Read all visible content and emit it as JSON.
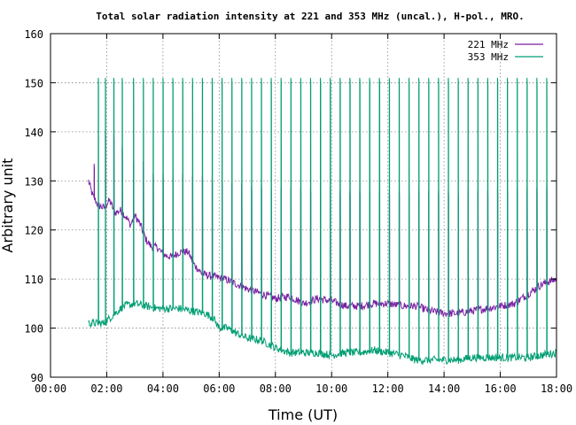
{
  "chart_data": {
    "type": "line",
    "title": "Total solar radiation intensity at 221 and 353 MHz (uncal.), H-pol., MRO.",
    "xlabel": "Time (UT)",
    "ylabel": "Arbitrary unit",
    "xlim": [
      0,
      18
    ],
    "ylim": [
      90,
      160
    ],
    "x_ticks": [
      "00:00",
      "02:00",
      "04:00",
      "06:00",
      "08:00",
      "10:00",
      "12:00",
      "14:00",
      "16:00",
      "18:00"
    ],
    "y_ticks": [
      "90",
      "100",
      "110",
      "120",
      "130",
      "140",
      "150",
      "160"
    ],
    "grid": true,
    "legend_position": "top-right",
    "series": [
      {
        "name": "221 MHz",
        "color": "#7b1fa2",
        "baseline": [
          [
            1.35,
            130
          ],
          [
            1.5,
            127
          ],
          [
            1.7,
            125
          ],
          [
            1.9,
            124.5
          ],
          [
            2.1,
            126
          ],
          [
            2.3,
            123.5
          ],
          [
            2.5,
            124
          ],
          [
            2.7,
            122.5
          ],
          [
            2.85,
            121
          ],
          [
            3.0,
            123
          ],
          [
            3.2,
            121
          ],
          [
            3.4,
            118
          ],
          [
            3.6,
            116.5
          ],
          [
            3.8,
            116.5
          ],
          [
            4.0,
            115
          ],
          [
            4.3,
            114.5
          ],
          [
            4.6,
            115.5
          ],
          [
            4.9,
            115.5
          ],
          [
            5.1,
            113
          ],
          [
            5.4,
            111
          ],
          [
            5.8,
            110.5
          ],
          [
            6.2,
            110
          ],
          [
            6.6,
            109
          ],
          [
            7.0,
            108
          ],
          [
            7.5,
            107
          ],
          [
            8.0,
            106
          ],
          [
            8.5,
            106.5
          ],
          [
            9.0,
            105
          ],
          [
            9.5,
            106
          ],
          [
            10.0,
            105.5
          ],
          [
            10.5,
            104.5
          ],
          [
            11.0,
            104.5
          ],
          [
            11.5,
            105
          ],
          [
            12.0,
            105
          ],
          [
            12.5,
            104.5
          ],
          [
            13.0,
            104.5
          ],
          [
            13.5,
            103.5
          ],
          [
            14.0,
            103
          ],
          [
            14.5,
            103
          ],
          [
            15.0,
            103.5
          ],
          [
            15.5,
            104
          ],
          [
            16.0,
            104.5
          ],
          [
            16.5,
            105
          ],
          [
            17.0,
            107
          ],
          [
            17.5,
            109
          ],
          [
            18.0,
            110
          ]
        ],
        "spikes": [
          [
            1.55,
            133.5
          ],
          [
            1.95,
            140
          ],
          [
            2.25,
            139.5
          ],
          [
            2.55,
            137
          ],
          [
            2.95,
            134
          ],
          [
            3.3,
            134
          ],
          [
            3.65,
            131.5
          ],
          [
            4.0,
            131.5
          ],
          [
            4.35,
            131.5
          ],
          [
            4.7,
            131.5
          ],
          [
            5.05,
            131
          ],
          [
            5.4,
            131
          ],
          [
            5.75,
            130.5
          ],
          [
            6.1,
            130
          ],
          [
            6.45,
            129.5
          ],
          [
            6.8,
            129.5
          ],
          [
            7.15,
            129
          ],
          [
            7.5,
            129
          ],
          [
            7.85,
            129
          ],
          [
            8.2,
            128.5
          ],
          [
            8.55,
            128.5
          ],
          [
            8.9,
            128.5
          ],
          [
            9.25,
            128.5
          ],
          [
            9.6,
            128
          ],
          [
            9.95,
            128
          ],
          [
            10.3,
            128
          ],
          [
            10.65,
            128
          ],
          [
            11.0,
            128
          ],
          [
            11.35,
            128
          ],
          [
            11.7,
            128
          ],
          [
            12.05,
            128
          ],
          [
            12.4,
            128
          ],
          [
            12.75,
            128
          ],
          [
            13.1,
            128
          ],
          [
            13.45,
            128
          ],
          [
            13.8,
            128
          ],
          [
            14.15,
            128
          ],
          [
            14.5,
            128
          ],
          [
            14.85,
            128
          ],
          [
            15.2,
            128
          ],
          [
            15.55,
            128
          ],
          [
            15.9,
            128.5
          ],
          [
            16.25,
            128.5
          ],
          [
            16.6,
            128.5
          ],
          [
            16.95,
            128.5
          ],
          [
            17.3,
            128.5
          ],
          [
            17.65,
            129
          ]
        ]
      },
      {
        "name": "353 MHz",
        "color": "#009e73",
        "baseline": [
          [
            1.35,
            101
          ],
          [
            1.7,
            101
          ],
          [
            1.9,
            101
          ],
          [
            2.2,
            102.5
          ],
          [
            2.6,
            104.5
          ],
          [
            3.0,
            105
          ],
          [
            3.4,
            104.5
          ],
          [
            3.8,
            104
          ],
          [
            4.2,
            104
          ],
          [
            4.6,
            104
          ],
          [
            5.0,
            103.5
          ],
          [
            5.5,
            103
          ],
          [
            5.8,
            102
          ],
          [
            6.0,
            100
          ],
          [
            6.3,
            100
          ],
          [
            6.6,
            99
          ],
          [
            7.0,
            98
          ],
          [
            7.5,
            97.5
          ],
          [
            8.0,
            96
          ],
          [
            8.5,
            95
          ],
          [
            9.0,
            95
          ],
          [
            9.5,
            95
          ],
          [
            10.0,
            94.5
          ],
          [
            10.5,
            95
          ],
          [
            11.0,
            95
          ],
          [
            11.5,
            95.5
          ],
          [
            12.0,
            95
          ],
          [
            12.5,
            94.5
          ],
          [
            13.0,
            93.5
          ],
          [
            13.5,
            93.5
          ],
          [
            14.0,
            93.5
          ],
          [
            14.5,
            93.5
          ],
          [
            15.0,
            94
          ],
          [
            15.5,
            94
          ],
          [
            16.0,
            94
          ],
          [
            16.5,
            94
          ],
          [
            17.0,
            94
          ],
          [
            17.5,
            94.5
          ],
          [
            18.0,
            95
          ]
        ],
        "spikes": [
          [
            1.7,
            151
          ],
          [
            1.95,
            151
          ],
          [
            2.25,
            151
          ],
          [
            2.55,
            151
          ],
          [
            2.95,
            151
          ],
          [
            3.3,
            151
          ],
          [
            3.65,
            151
          ],
          [
            4.0,
            151
          ],
          [
            4.35,
            151
          ],
          [
            4.7,
            151
          ],
          [
            5.05,
            151
          ],
          [
            5.4,
            151
          ],
          [
            5.75,
            151
          ],
          [
            6.1,
            151
          ],
          [
            6.45,
            151
          ],
          [
            6.8,
            151
          ],
          [
            7.15,
            151
          ],
          [
            7.5,
            151
          ],
          [
            7.85,
            151
          ],
          [
            8.2,
            151
          ],
          [
            8.55,
            151
          ],
          [
            8.9,
            151
          ],
          [
            9.25,
            151
          ],
          [
            9.6,
            151
          ],
          [
            9.95,
            151
          ],
          [
            10.3,
            151
          ],
          [
            10.65,
            151
          ],
          [
            11.0,
            151
          ],
          [
            11.35,
            151
          ],
          [
            11.7,
            151
          ],
          [
            12.05,
            151
          ],
          [
            12.4,
            151
          ],
          [
            12.75,
            151
          ],
          [
            13.1,
            151
          ],
          [
            13.45,
            151
          ],
          [
            13.8,
            151
          ],
          [
            14.15,
            151
          ],
          [
            14.5,
            151
          ],
          [
            14.85,
            151
          ],
          [
            15.2,
            151
          ],
          [
            15.55,
            151
          ],
          [
            15.9,
            151
          ],
          [
            16.25,
            151
          ],
          [
            16.6,
            151
          ],
          [
            16.95,
            151
          ],
          [
            17.3,
            151
          ],
          [
            17.65,
            151
          ]
        ]
      }
    ]
  }
}
